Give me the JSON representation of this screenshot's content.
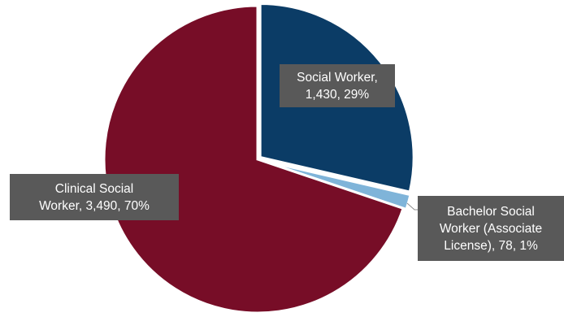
{
  "chart_data": {
    "type": "pie",
    "title": "",
    "slices": [
      {
        "category": "Social Worker",
        "value": 1430,
        "percent": 29,
        "color": "#0b3c66",
        "label_lines": [
          "Social Worker,",
          "1,430, 29%"
        ]
      },
      {
        "category": "Bachelor Social Worker (Associate License)",
        "value": 78,
        "percent": 1,
        "color": "#7fb4d9",
        "label_lines": [
          "Bachelor Social",
          "Worker (Associate",
          "License), 78, 1%"
        ]
      },
      {
        "category": "Clinical Social Worker",
        "value": 3490,
        "percent": 70,
        "color": "#770d27",
        "label_lines": [
          "Clinical Social",
          "Worker, 3,490, 70%"
        ]
      }
    ],
    "start_angle": "12 o'clock",
    "direction": "clockwise",
    "legend": "none",
    "label_box_color": "#595959",
    "label_text_color": "#ffffff"
  }
}
